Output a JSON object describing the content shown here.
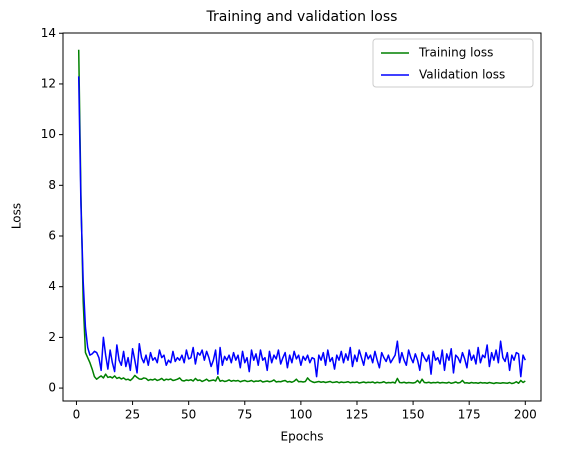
{
  "chart_data": {
    "type": "line",
    "title": "Training and validation loss",
    "xlabel": "Epochs",
    "ylabel": "Loss",
    "x": [
      1,
      2,
      3,
      4,
      5,
      6,
      7,
      8,
      9,
      10,
      11,
      12,
      13,
      14,
      15,
      16,
      17,
      18,
      19,
      20,
      21,
      22,
      23,
      24,
      25,
      26,
      27,
      28,
      29,
      30,
      31,
      32,
      33,
      34,
      35,
      36,
      37,
      38,
      39,
      40,
      41,
      42,
      43,
      44,
      45,
      46,
      47,
      48,
      49,
      50,
      51,
      52,
      53,
      54,
      55,
      56,
      57,
      58,
      59,
      60,
      61,
      62,
      63,
      64,
      65,
      66,
      67,
      68,
      69,
      70,
      71,
      72,
      73,
      74,
      75,
      76,
      77,
      78,
      79,
      80,
      81,
      82,
      83,
      84,
      85,
      86,
      87,
      88,
      89,
      90,
      91,
      92,
      93,
      94,
      95,
      96,
      97,
      98,
      99,
      100,
      101,
      102,
      103,
      104,
      105,
      106,
      107,
      108,
      109,
      110,
      111,
      112,
      113,
      114,
      115,
      116,
      117,
      118,
      119,
      120,
      121,
      122,
      123,
      124,
      125,
      126,
      127,
      128,
      129,
      130,
      131,
      132,
      133,
      134,
      135,
      136,
      137,
      138,
      139,
      140,
      141,
      142,
      143,
      144,
      145,
      146,
      147,
      148,
      149,
      150,
      151,
      152,
      153,
      154,
      155,
      156,
      157,
      158,
      159,
      160,
      161,
      162,
      163,
      164,
      165,
      166,
      167,
      168,
      169,
      170,
      171,
      172,
      173,
      174,
      175,
      176,
      177,
      178,
      179,
      180,
      181,
      182,
      183,
      184,
      185,
      186,
      187,
      188,
      189,
      190,
      191,
      192,
      193,
      194,
      195,
      196,
      197,
      198,
      199,
      200
    ],
    "series": [
      {
        "name": "Training loss",
        "color": "#008000",
        "values": [
          13.35,
          7.6,
          3.4,
          1.4,
          1.2,
          1.0,
          0.75,
          0.45,
          0.35,
          0.42,
          0.48,
          0.4,
          0.55,
          0.42,
          0.45,
          0.4,
          0.48,
          0.38,
          0.42,
          0.36,
          0.4,
          0.33,
          0.35,
          0.3,
          0.38,
          0.5,
          0.42,
          0.36,
          0.35,
          0.4,
          0.38,
          0.3,
          0.34,
          0.32,
          0.36,
          0.3,
          0.33,
          0.38,
          0.3,
          0.35,
          0.33,
          0.36,
          0.3,
          0.32,
          0.35,
          0.4,
          0.3,
          0.28,
          0.32,
          0.3,
          0.33,
          0.28,
          0.38,
          0.3,
          0.32,
          0.26,
          0.3,
          0.35,
          0.28,
          0.3,
          0.32,
          0.28,
          0.45,
          0.27,
          0.3,
          0.26,
          0.28,
          0.32,
          0.27,
          0.3,
          0.28,
          0.3,
          0.25,
          0.28,
          0.3,
          0.26,
          0.27,
          0.3,
          0.25,
          0.28,
          0.27,
          0.3,
          0.24,
          0.26,
          0.28,
          0.25,
          0.27,
          0.32,
          0.24,
          0.26,
          0.25,
          0.28,
          0.3,
          0.24,
          0.26,
          0.23,
          0.27,
          0.35,
          0.25,
          0.26,
          0.24,
          0.26,
          0.4,
          0.3,
          0.25,
          0.22,
          0.24,
          0.26,
          0.23,
          0.25,
          0.22,
          0.24,
          0.26,
          0.22,
          0.23,
          0.25,
          0.21,
          0.24,
          0.22,
          0.23,
          0.25,
          0.21,
          0.23,
          0.22,
          0.24,
          0.2,
          0.22,
          0.24,
          0.21,
          0.23,
          0.22,
          0.24,
          0.2,
          0.23,
          0.21,
          0.22,
          0.25,
          0.2,
          0.22,
          0.21,
          0.23,
          0.2,
          0.38,
          0.22,
          0.21,
          0.23,
          0.2,
          0.22,
          0.21,
          0.2,
          0.22,
          0.3,
          0.2,
          0.35,
          0.22,
          0.21,
          0.23,
          0.2,
          0.22,
          0.21,
          0.23,
          0.2,
          0.22,
          0.21,
          0.2,
          0.23,
          0.19,
          0.21,
          0.24,
          0.2,
          0.22,
          0.3,
          0.2,
          0.21,
          0.19,
          0.22,
          0.2,
          0.21,
          0.19,
          0.22,
          0.2,
          0.21,
          0.19,
          0.22,
          0.2,
          0.18,
          0.21,
          0.2,
          0.19,
          0.21,
          0.2,
          0.19,
          0.22,
          0.18,
          0.2,
          0.25,
          0.19,
          0.3,
          0.22,
          0.28
        ]
      },
      {
        "name": "Validation loss",
        "color": "#0000ff",
        "values": [
          12.3,
          7.2,
          4.2,
          2.4,
          1.6,
          1.3,
          1.35,
          1.45,
          1.4,
          1.2,
          0.7,
          2.0,
          1.3,
          0.75,
          1.5,
          1.0,
          0.65,
          1.7,
          1.1,
          0.9,
          1.45,
          0.85,
          1.2,
          0.7,
          1.55,
          1.1,
          0.6,
          1.75,
          1.2,
          1.0,
          1.3,
          0.9,
          1.4,
          1.1,
          1.2,
          1.0,
          1.5,
          1.2,
          1.3,
          0.9,
          1.1,
          1.0,
          1.45,
          1.05,
          1.2,
          1.1,
          1.3,
          1.0,
          1.5,
          1.15,
          1.2,
          1.6,
          0.95,
          1.4,
          1.3,
          1.5,
          1.1,
          1.45,
          1.2,
          0.85,
          1.1,
          1.5,
          0.55,
          1.6,
          0.9,
          1.25,
          1.1,
          1.3,
          1.0,
          1.4,
          1.1,
          1.3,
          0.8,
          1.45,
          1.0,
          1.2,
          0.65,
          1.5,
          1.1,
          1.35,
          0.9,
          1.5,
          1.1,
          1.2,
          0.7,
          1.45,
          1.0,
          1.3,
          1.15,
          1.5,
          0.95,
          1.2,
          1.4,
          0.8,
          1.3,
          1.0,
          1.45,
          1.15,
          1.3,
          0.9,
          1.25,
          1.1,
          1.3,
          1.0,
          1.2,
          1.15,
          0.45,
          1.3,
          1.1,
          1.4,
          0.9,
          1.5,
          1.05,
          1.2,
          0.75,
          1.3,
          1.1,
          1.45,
          1.0,
          1.35,
          1.1,
          1.6,
          0.85,
          1.3,
          1.05,
          1.5,
          1.2,
          0.9,
          1.4,
          1.15,
          1.3,
          1.0,
          1.45,
          1.1,
          0.8,
          1.4,
          1.2,
          1.05,
          1.3,
          1.0,
          1.15,
          1.3,
          1.85,
          1.0,
          1.4,
          1.1,
          0.9,
          1.5,
          1.2,
          1.0,
          1.35,
          1.1,
          0.7,
          1.4,
          1.2,
          1.05,
          1.3,
          0.55,
          1.45,
          1.1,
          1.2,
          0.95,
          1.5,
          0.7,
          1.35,
          1.1,
          1.55,
          0.6,
          1.3,
          1.2,
          1.0,
          1.4,
          1.15,
          0.8,
          1.5,
          1.1,
          1.3,
          0.95,
          1.6,
          1.0,
          1.3,
          1.2,
          1.7,
          0.85,
          1.4,
          1.1,
          1.5,
          1.0,
          1.85,
          1.2,
          1.05,
          1.4,
          0.7,
          1.3,
          1.1,
          1.4,
          1.35,
          0.45,
          1.3,
          1.1
        ]
      }
    ],
    "xlim": [
      -6,
      207
    ],
    "ylim": [
      -0.51,
      14.01
    ],
    "xticks": [
      0,
      25,
      50,
      75,
      100,
      125,
      150,
      175,
      200
    ],
    "yticks": [
      0,
      2,
      4,
      6,
      8,
      10,
      12,
      14
    ],
    "legend": "upper right"
  }
}
